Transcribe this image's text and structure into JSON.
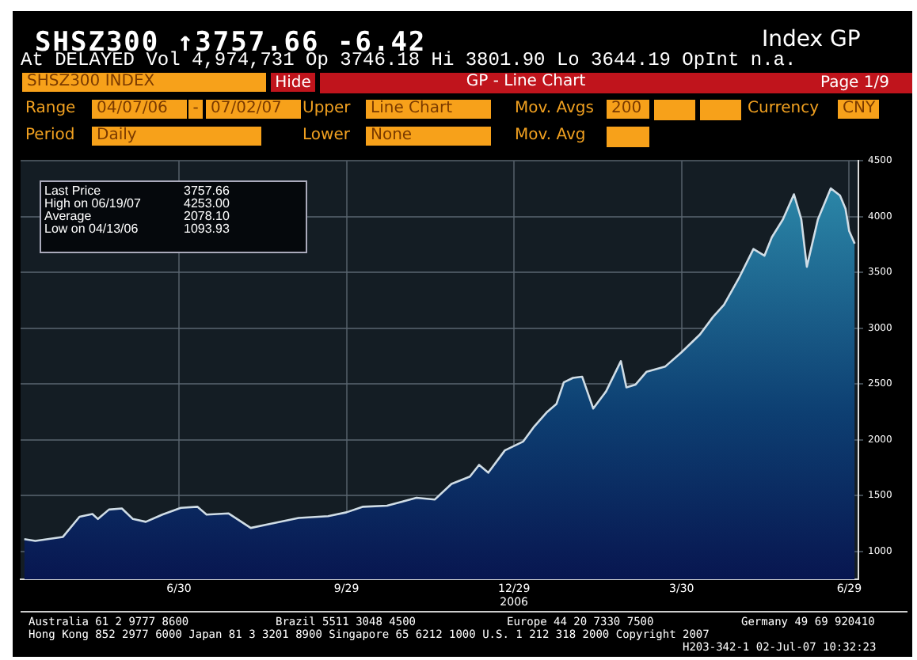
{
  "chart_data": {
    "type": "area",
    "title": "SHSZ300 ↑3757.66 -6.42",
    "subtitle": "At DELAYED Vol 4,974,731 Op 3746.18 Hi 3801.90 Lo 3644.19 OpInt n.a.",
    "annotations": [
      "Index GP",
      "SHSZ300 INDEX",
      "Hide",
      "GP - Line Chart",
      "Page 1/9",
      "Range",
      "04/07/06",
      "-",
      "07/02/07",
      "Upper",
      "Line Chart",
      "Mov. Avgs",
      "200",
      "Currency",
      "CNY",
      "Period",
      "Daily",
      "Lower",
      "None",
      "Mov. Avg",
      "Last Price",
      "3757.66",
      "High on 06/19/07",
      "4253.00",
      "Average",
      "2078.10",
      "Low on 04/13/06",
      "1093.93",
      "Australia 61 2 9777 8600",
      "Brazil 5511 3048 4500",
      "Europe 44 20 7330 7500",
      "Germany 49 69 920410",
      "Hong Kong 852 2977 6000 Japan 81 3 3201 8900 Singapore 65 6212 1000 U.S. 1 212 318 2000 Copyright 2007",
      "H203-342-1 02-Jul-07 10:32:23"
    ],
    "x": [
      "2006-04-07",
      "2006-04-13",
      "2006-04-28",
      "2006-05-07",
      "2006-05-14",
      "2006-05-17",
      "2006-05-23",
      "2006-05-30",
      "2006-06-05",
      "2006-06-12",
      "2006-06-21",
      "2006-07-01",
      "2006-07-10",
      "2006-07-15",
      "2006-07-27",
      "2006-08-08",
      "2006-08-18",
      "2006-09-03",
      "2006-09-19",
      "2006-09-29",
      "2006-10-08",
      "2006-10-21",
      "2006-11-06",
      "2006-11-16",
      "2006-11-25",
      "2006-12-05",
      "2006-12-10",
      "2006-12-15",
      "2006-12-24",
      "2007-01-03",
      "2007-01-09",
      "2007-01-16",
      "2007-01-21",
      "2007-01-25",
      "2007-01-30",
      "2007-02-04",
      "2007-02-10",
      "2007-02-17",
      "2007-02-25",
      "2007-02-28",
      "2007-03-05",
      "2007-03-11",
      "2007-03-21",
      "2007-03-30",
      "2007-04-09",
      "2007-04-16",
      "2007-04-22",
      "2007-04-30",
      "2007-05-08",
      "2007-05-14",
      "2007-05-18",
      "2007-05-24",
      "2007-05-30",
      "2007-06-03",
      "2007-06-06",
      "2007-06-12",
      "2007-06-19",
      "2007-06-24",
      "2007-06-27",
      "2007-06-29",
      "2007-07-02"
    ],
    "series": [
      {
        "color": "#d0dde6",
        "values": [
          1110,
          1094,
          1130,
          1310,
          1335,
          1290,
          1375,
          1385,
          1290,
          1265,
          1330,
          1390,
          1400,
          1330,
          1340,
          1210,
          1245,
          1300,
          1315,
          1350,
          1400,
          1410,
          1480,
          1465,
          1605,
          1670,
          1775,
          1705,
          1905,
          1985,
          2120,
          2250,
          2320,
          2515,
          2555,
          2565,
          2280,
          2435,
          2705,
          2470,
          2495,
          2610,
          2655,
          2785,
          2945,
          3100,
          3210,
          3445,
          3710,
          3650,
          3815,
          3975,
          4200,
          3975,
          3550,
          3975,
          4253,
          4190,
          4070,
          3870,
          3757.66
        ]
      }
    ],
    "xlim": [
      "2006-04-05",
      "2007-07-04"
    ],
    "xticks": [
      {
        "value": "2006-06-30",
        "label": "6/30"
      },
      {
        "value": "2006-09-29",
        "label": "9/29"
      },
      {
        "value": "2006-12-29",
        "label": "12/29\n2006"
      },
      {
        "value": "2007-03-30",
        "label": "3/30"
      },
      {
        "value": "2007-06-29",
        "label": "6/29"
      }
    ],
    "ylim": [
      750,
      4500
    ],
    "yticks": [
      1000,
      1500,
      2000,
      2500,
      3000,
      3500,
      4000,
      4500
    ],
    "grid": true,
    "legend": false,
    "marker": "none",
    "line_style": "solid"
  }
}
